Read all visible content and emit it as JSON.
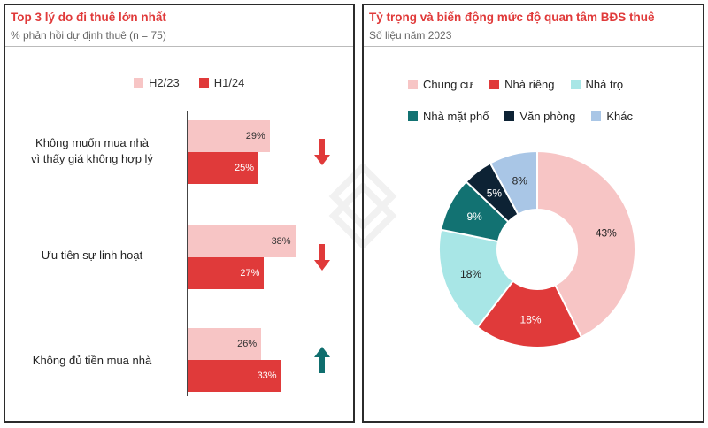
{
  "left": {
    "title": "Top 3 lý do đi thuê lớn nhất",
    "subtitle": "% phản hồi dự định thuê (n = 75)"
  },
  "right": {
    "title": "Tỷ trọng và biến động mức độ quan tâm BĐS thuê",
    "subtitle": "Số liệu năm 2023"
  },
  "chart_data": [
    {
      "type": "bar",
      "orientation": "horizontal",
      "title": "Top 3 lý do đi thuê lớn nhất",
      "subtitle": "% phản hồi dự định thuê (n = 75)",
      "categories": [
        "Không muốn mua nhà vì thấy giá không hợp lý",
        "Ưu tiên sự linh hoạt",
        "Không đủ tiền mua nhà"
      ],
      "category_lines": [
        [
          "Không muốn mua nhà",
          "vì thấy giá không hợp lý"
        ],
        [
          "Ưu tiên sự linh hoạt"
        ],
        [
          "Không đủ tiền mua nhà"
        ]
      ],
      "series": [
        {
          "name": "H2/23",
          "values": [
            29,
            38,
            26
          ],
          "labels": [
            "29%",
            "38%",
            "26%"
          ],
          "color": "#f7c5c5",
          "text_color": "#333333"
        },
        {
          "name": "H1/24",
          "values": [
            25,
            27,
            33
          ],
          "labels": [
            "25%",
            "27%",
            "33%"
          ],
          "color": "#e03a3a",
          "text_color": "#ffffff"
        }
      ],
      "trend_arrows": [
        {
          "direction": "down",
          "icon": "arrow-down-icon",
          "color": "#e03a3a"
        },
        {
          "direction": "down",
          "icon": "arrow-down-icon",
          "color": "#e03a3a"
        },
        {
          "direction": "up",
          "icon": "arrow-up-icon",
          "color": "#0f6e6e"
        }
      ],
      "legend_position": "top",
      "xlim": [
        0,
        40
      ],
      "grid": false
    },
    {
      "type": "pie",
      "donut": true,
      "title": "Tỷ trọng và biến động mức độ quan tâm BĐS thuê",
      "subtitle": "Số liệu năm 2023",
      "categories": [
        "Chung cư",
        "Nhà riêng",
        "Nhà trọ",
        "Nhà mặt phố",
        "Văn phòng",
        "Khác"
      ],
      "values": [
        43,
        18,
        18,
        9,
        5,
        8
      ],
      "labels": [
        "43%",
        "18%",
        "18%",
        "9%",
        "5%",
        "8%"
      ],
      "colors": [
        "#f7c5c5",
        "#e03a3a",
        "#a8e6e6",
        "#127272",
        "#0d2234",
        "#a9c6e6"
      ],
      "label_colors": [
        "#222222",
        "#ffffff",
        "#222222",
        "#ffffff",
        "#ffffff",
        "#222222"
      ],
      "legend_position": "top"
    }
  ]
}
